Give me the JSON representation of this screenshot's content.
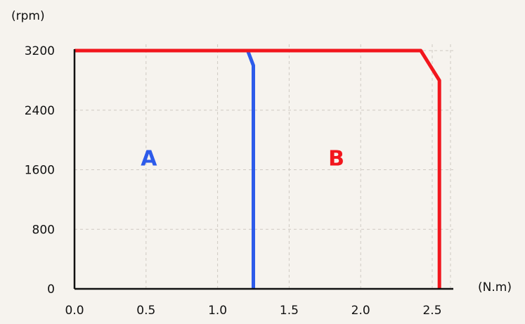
{
  "chart_data": {
    "type": "line",
    "xlabel": "(N.m)",
    "ylabel": "(rpm)",
    "xlim": [
      0,
      2.6
    ],
    "ylim": [
      0,
      3200
    ],
    "x_ticks": [
      "0.0",
      "0.5",
      "1.0",
      "1.5",
      "2.0",
      "2.5"
    ],
    "y_ticks": [
      "0",
      "800",
      "1600",
      "2400",
      "3200"
    ],
    "grid": "dashed",
    "series": [
      {
        "name": "A",
        "color": "#2d5bea",
        "points": [
          [
            1.21,
            3200
          ],
          [
            1.25,
            3000
          ],
          [
            1.25,
            0
          ]
        ]
      },
      {
        "name": "B",
        "color": "#f2161d",
        "points": [
          [
            0,
            3200
          ],
          [
            2.42,
            3200
          ],
          [
            2.55,
            2800
          ],
          [
            2.55,
            0
          ]
        ]
      }
    ],
    "annotations": [
      {
        "text": "A",
        "x": 0.52,
        "y": 1750,
        "color": "#2d5bea"
      },
      {
        "text": "B",
        "x": 1.83,
        "y": 1750,
        "color": "#f2161d"
      }
    ]
  }
}
